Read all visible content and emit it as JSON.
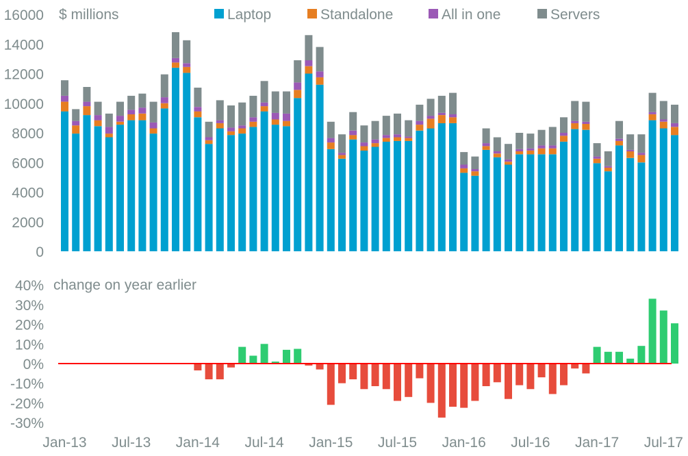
{
  "chart_data": [
    {
      "type": "bar",
      "stacked": true,
      "title": "$ millions",
      "xlabel": "",
      "ylabel": "$ millions",
      "ylim": [
        0,
        16000
      ],
      "yticks": [
        0,
        2000,
        4000,
        6000,
        8000,
        10000,
        12000,
        14000,
        16000
      ],
      "ytick_labels": [
        "0",
        "2000",
        "4000",
        "6000",
        "8000",
        "10000",
        "12000",
        "14000",
        "16000"
      ],
      "grid": false,
      "legend_position": "top",
      "categories": [
        "Jan-13",
        "Feb-13",
        "Mar-13",
        "Apr-13",
        "May-13",
        "Jun-13",
        "Jul-13",
        "Aug-13",
        "Sep-13",
        "Oct-13",
        "Nov-13",
        "Dec-13",
        "Jan-14",
        "Feb-14",
        "Mar-14",
        "Apr-14",
        "May-14",
        "Jun-14",
        "Jul-14",
        "Aug-14",
        "Sep-14",
        "Oct-14",
        "Nov-14",
        "Dec-14",
        "Jan-15",
        "Feb-15",
        "Mar-15",
        "Apr-15",
        "May-15",
        "Jun-15",
        "Jul-15",
        "Aug-15",
        "Sep-15",
        "Oct-15",
        "Nov-15",
        "Dec-15",
        "Jan-16",
        "Feb-16",
        "Mar-16",
        "Apr-16",
        "May-16",
        "Jun-16",
        "Jul-16",
        "Aug-16",
        "Sep-16",
        "Oct-16",
        "Nov-16",
        "Dec-16",
        "Jan-17",
        "Feb-17",
        "Mar-17",
        "Apr-17",
        "May-17",
        "Jun-17",
        "Jul-17",
        "Aug-17"
      ],
      "series": [
        {
          "name": "Laptop",
          "color": "#00a0d0",
          "values": [
            9450,
            7950,
            9200,
            8450,
            7700,
            8550,
            8850,
            8850,
            7950,
            9650,
            12400,
            12050,
            9050,
            7250,
            8300,
            7850,
            7950,
            8400,
            9450,
            8550,
            8450,
            10350,
            12000,
            11250,
            6900,
            6250,
            7550,
            6800,
            7050,
            7400,
            7450,
            7450,
            8150,
            8300,
            8650,
            8650,
            5300,
            5100,
            6850,
            6350,
            5850,
            6550,
            6550,
            6550,
            6550,
            7400,
            8250,
            8200,
            5950,
            5400,
            7150,
            6300,
            6000,
            8850,
            8300,
            7850
          ]
        },
        {
          "name": "Standalone",
          "color": "#e67e22",
          "values": [
            650,
            550,
            600,
            400,
            250,
            200,
            400,
            450,
            350,
            350,
            350,
            400,
            400,
            250,
            350,
            250,
            350,
            350,
            350,
            350,
            350,
            550,
            500,
            500,
            450,
            250,
            300,
            300,
            250,
            250,
            250,
            200,
            400,
            650,
            550,
            400,
            300,
            300,
            250,
            250,
            200,
            200,
            250,
            400,
            400,
            400,
            400,
            400,
            300,
            250,
            300,
            450,
            500,
            400,
            450,
            550
          ]
        },
        {
          "name": "All in one",
          "color": "#9b59b6",
          "values": [
            400,
            300,
            300,
            350,
            450,
            400,
            300,
            400,
            400,
            400,
            300,
            250,
            300,
            200,
            200,
            250,
            200,
            300,
            250,
            450,
            500,
            500,
            400,
            400,
            300,
            150,
            300,
            250,
            250,
            200,
            200,
            100,
            250,
            200,
            150,
            200,
            250,
            150,
            200,
            150,
            150,
            150,
            150,
            200,
            200,
            200,
            150,
            150,
            150,
            100,
            150,
            100,
            150,
            150,
            150,
            250
          ]
        },
        {
          "name": "Servers",
          "color": "#7f8c8d",
          "values": [
            1050,
            800,
            1000,
            900,
            900,
            950,
            950,
            950,
            1400,
            1550,
            1750,
            1550,
            1300,
            1050,
            1350,
            1500,
            1550,
            1450,
            1450,
            1450,
            1500,
            1500,
            1700,
            1650,
            1100,
            1250,
            1250,
            1150,
            1250,
            1300,
            1400,
            1100,
            1100,
            1150,
            1150,
            1450,
            850,
            850,
            1000,
            950,
            1050,
            1100,
            1000,
            1050,
            1250,
            1050,
            1350,
            1350,
            900,
            1000,
            1200,
            1050,
            1250,
            1300,
            1250,
            1250
          ]
        }
      ]
    },
    {
      "type": "bar",
      "title": "change on year earlier",
      "xlabel": "",
      "ylabel": "%",
      "ylim": [
        -35,
        40
      ],
      "yticks": [
        -30,
        -20,
        -10,
        0,
        10,
        20,
        30,
        40
      ],
      "ytick_labels": [
        "-30%",
        "-20%",
        "-10%",
        "0%",
        "10%",
        "20%",
        "30%",
        "40%"
      ],
      "grid": false,
      "zero_line_color": "#ff0000",
      "positive_color": "#2ecc71",
      "negative_color": "#e74c3c",
      "categories": [
        "Jan-13",
        "Feb-13",
        "Mar-13",
        "Apr-13",
        "May-13",
        "Jun-13",
        "Jul-13",
        "Aug-13",
        "Sep-13",
        "Oct-13",
        "Nov-13",
        "Dec-13",
        "Jan-14",
        "Feb-14",
        "Mar-14",
        "Apr-14",
        "May-14",
        "Jun-14",
        "Jul-14",
        "Aug-14",
        "Sep-14",
        "Oct-14",
        "Nov-14",
        "Dec-14",
        "Jan-15",
        "Feb-15",
        "Mar-15",
        "Apr-15",
        "May-15",
        "Jun-15",
        "Jul-15",
        "Aug-15",
        "Sep-15",
        "Oct-15",
        "Nov-15",
        "Dec-15",
        "Jan-16",
        "Feb-16",
        "Mar-16",
        "Apr-16",
        "May-16",
        "Jun-16",
        "Jul-16",
        "Aug-16",
        "Sep-16",
        "Oct-16",
        "Nov-16",
        "Dec-16",
        "Jan-17",
        "Feb-17",
        "Mar-17",
        "Apr-17",
        "May-17",
        "Jun-17",
        "Jul-17",
        "Aug-17"
      ],
      "values": [
        null,
        null,
        null,
        null,
        null,
        null,
        null,
        null,
        null,
        null,
        null,
        null,
        -3.5,
        -8,
        -8,
        -2,
        8.5,
        4,
        10,
        1,
        7,
        7.5,
        -1,
        -3,
        -21,
        -10,
        -8,
        -13,
        -11.5,
        -13,
        -19,
        -17,
        -7.5,
        -20,
        -27.5,
        -22,
        -22.5,
        -19,
        -11.5,
        -9.5,
        -18,
        -11,
        -13,
        -7,
        -15.5,
        -11,
        -2.5,
        -5,
        8.5,
        6,
        6,
        2.5,
        9,
        33,
        27,
        20.5
      ]
    }
  ],
  "x_axis": {
    "tick_labels": [
      "Jan-13",
      "Jul-13",
      "Jan-14",
      "Jul-14",
      "Jan-15",
      "Jul-15",
      "Jan-16",
      "Jul-16",
      "Jan-17",
      "Jul-17"
    ],
    "tick_indices": [
      0,
      6,
      12,
      18,
      24,
      30,
      36,
      42,
      48,
      54
    ]
  }
}
